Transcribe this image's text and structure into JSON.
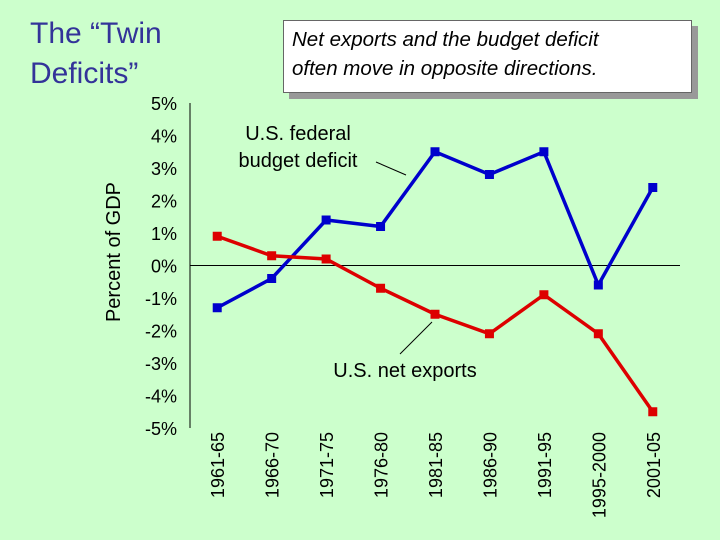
{
  "slide": {
    "title_line1": "The “Twin",
    "title_line2": "Deficits”",
    "callout_line1": "Net exports and the budget deficit",
    "callout_line2": "often move in opposite directions."
  },
  "colors": {
    "background": "#ccffcc",
    "title": "#333399",
    "budget_series": "#0000cc",
    "net_exports_series": "#dd0000"
  },
  "chart_data": {
    "type": "line",
    "title": "",
    "xlabel": "",
    "ylabel": "Percent of GDP",
    "ylim": [
      -5,
      5
    ],
    "y_ticks": [
      "5%",
      "4%",
      "3%",
      "2%",
      "1%",
      "0%",
      "-1%",
      "-2%",
      "-3%",
      "-4%",
      "-5%"
    ],
    "y_tick_values": [
      5,
      4,
      3,
      2,
      1,
      0,
      -1,
      -2,
      -3,
      -4,
      -5
    ],
    "categories": [
      "1961-65",
      "1966-70",
      "1971-75",
      "1976-80",
      "1981-85",
      "1986-90",
      "1991-95",
      "1995-2000",
      "2001-05"
    ],
    "grid": false,
    "zero_line": true,
    "series": [
      {
        "name": "U.S. federal budget deficit",
        "color": "#0000cc",
        "values": [
          -1.3,
          -0.4,
          1.4,
          1.2,
          3.5,
          2.8,
          3.5,
          -0.6,
          2.4
        ]
      },
      {
        "name": "U.S. net exports",
        "color": "#dd0000",
        "values": [
          0.9,
          0.3,
          0.2,
          -0.7,
          -1.5,
          -2.1,
          -0.9,
          -2.1,
          -4.5
        ]
      }
    ],
    "annotations": {
      "budget_line1": "U.S. federal",
      "budget_line2": "budget deficit",
      "exports": "U.S. net exports"
    }
  }
}
